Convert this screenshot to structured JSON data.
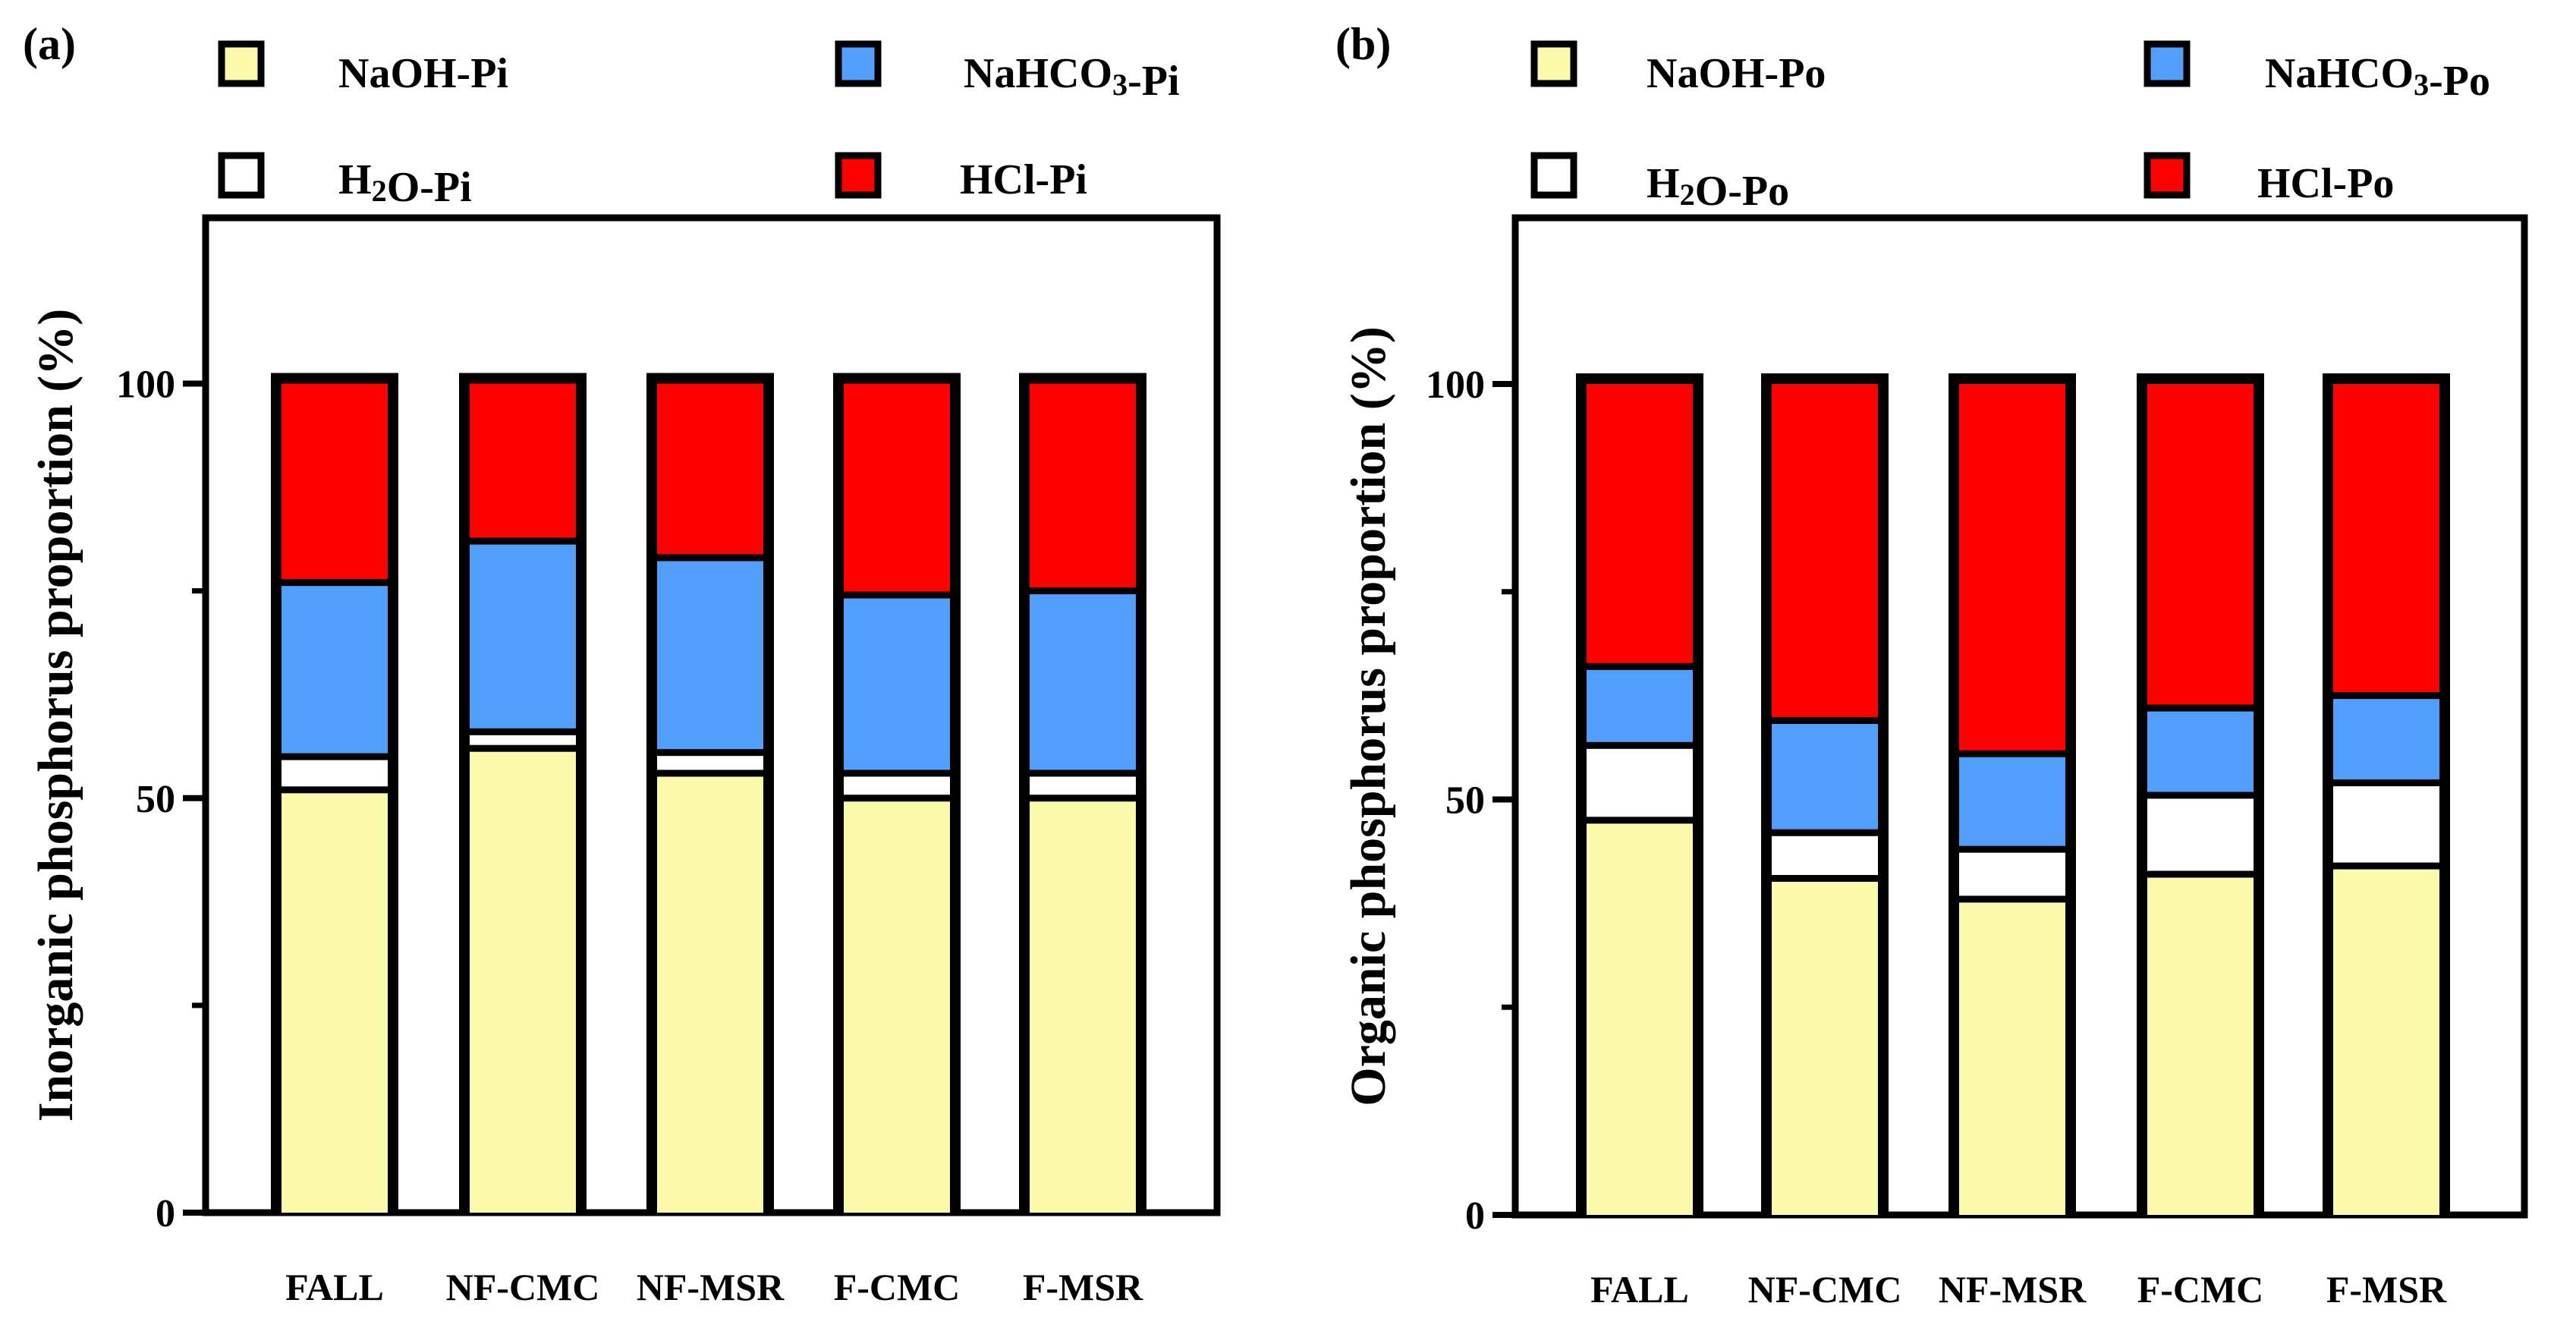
{
  "chart_data": [
    {
      "panel_label": "(a)",
      "type": "bar",
      "stacked": true,
      "ylabel": "Inorganic phosphorus proportion  (%)",
      "ylim": [
        0,
        120
      ],
      "yticks": [
        0,
        50,
        100
      ],
      "ytick_labels": [
        "0",
        "50",
        "100"
      ],
      "legend_position": "top",
      "categories": [
        "FALL",
        "NF-CMC",
        "NF-MSR",
        "F-CMC",
        "F-MSR"
      ],
      "series": [
        {
          "name": "NaOH-Pi",
          "color": "#fafaaa",
          "values": [
            51,
            56,
            53,
            50,
            50
          ]
        },
        {
          "name": "H2O-Pi",
          "color": "#ffffff",
          "values": [
            4,
            2,
            2.5,
            3,
            3
          ]
        },
        {
          "name": "NaHCO3-Pi",
          "color": "#519ffb",
          "values": [
            21,
            23,
            23.5,
            21.5,
            22
          ]
        },
        {
          "name": "HCl-Pi",
          "color": "#ff0000",
          "values": [
            24,
            19,
            21,
            25.5,
            25
          ]
        }
      ]
    },
    {
      "panel_label": "(b)",
      "type": "bar",
      "stacked": true,
      "ylabel": "Organic phosphorus proportion  (%)",
      "ylim": [
        0,
        120
      ],
      "yticks": [
        0,
        50,
        100
      ],
      "ytick_labels": [
        "0",
        "50",
        "100"
      ],
      "legend_position": "top",
      "categories": [
        "FALL",
        "NF-CMC",
        "NF-MSR",
        "F-CMC",
        "F-MSR"
      ],
      "series": [
        {
          "name": "NaOH-Po",
          "color": "#fafaaa",
          "values": [
            47.5,
            40.5,
            38,
            41,
            42
          ]
        },
        {
          "name": "H2O-Po",
          "color": "#ffffff",
          "values": [
            9,
            5.5,
            6,
            9.5,
            10
          ]
        },
        {
          "name": "NaHCO3-Po",
          "color": "#519ffb",
          "values": [
            9.5,
            13.5,
            11.5,
            10.5,
            10.5
          ]
        },
        {
          "name": "HCl-Po",
          "color": "#ff0000",
          "values": [
            34,
            40.5,
            44.5,
            39,
            37.5
          ]
        }
      ]
    }
  ]
}
